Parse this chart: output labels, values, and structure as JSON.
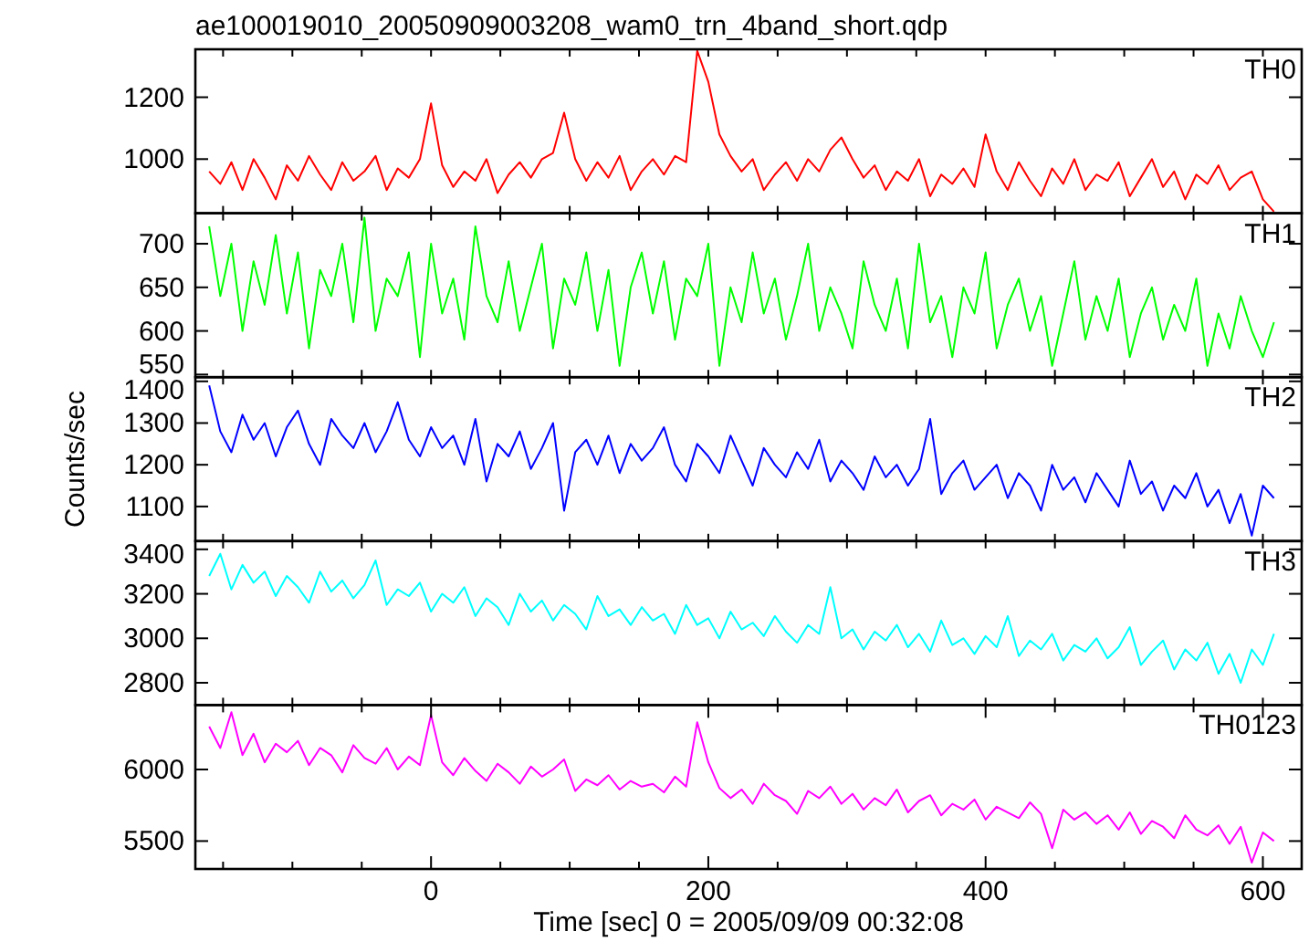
{
  "chart_data": [
    {
      "type": "line",
      "title": "ae100019010_20050909003208_wam0_trn_4band_short.qdp",
      "annotations": [
        "TH0"
      ],
      "tick_labels": "y",
      "x": [
        -160,
        -152,
        -144,
        -136,
        -128,
        -120,
        -112,
        -104,
        -96,
        -88,
        -80,
        -72,
        -64,
        -56,
        -48,
        -40,
        -32,
        -24,
        -16,
        -8,
        0,
        8,
        16,
        24,
        32,
        40,
        48,
        56,
        64,
        72,
        80,
        88,
        96,
        104,
        112,
        120,
        128,
        136,
        144,
        152,
        160,
        168,
        176,
        184,
        192,
        200,
        208,
        216,
        224,
        232,
        240,
        248,
        256,
        264,
        272,
        280,
        288,
        296,
        304,
        312,
        320,
        328,
        336,
        344,
        352,
        360,
        368,
        376,
        384,
        392,
        400,
        408,
        416,
        424,
        432,
        440,
        448,
        456,
        464,
        472,
        480,
        488,
        496,
        504,
        512,
        520,
        528,
        536,
        544,
        552,
        560,
        568,
        576,
        584,
        592,
        600,
        608
      ],
      "xlim": [
        -170,
        628
      ],
      "xticks": [
        {
          "value": -150,
          "label": null
        },
        {
          "value": -100,
          "label": null
        },
        {
          "value": -50,
          "label": null
        },
        {
          "value": 0,
          "label": null
        },
        {
          "value": 50,
          "label": null
        },
        {
          "value": 100,
          "label": null
        },
        {
          "value": 150,
          "label": null
        },
        {
          "value": 200,
          "label": null
        },
        {
          "value": 250,
          "label": null
        },
        {
          "value": 300,
          "label": null
        },
        {
          "value": 350,
          "label": null
        },
        {
          "value": 400,
          "label": null
        },
        {
          "value": 450,
          "label": null
        },
        {
          "value": 500,
          "label": null
        },
        {
          "value": 550,
          "label": null
        },
        {
          "value": 600,
          "label": null
        }
      ],
      "ylim": [
        825,
        1355
      ],
      "yticks": [
        1000,
        1200
      ],
      "series": [
        {
          "color": "#ff0000",
          "values": [
            960,
            920,
            990,
            900,
            1000,
            940,
            870,
            980,
            930,
            1010,
            950,
            900,
            990,
            930,
            960,
            1010,
            900,
            970,
            940,
            1000,
            1180,
            980,
            910,
            960,
            930,
            1000,
            890,
            950,
            990,
            940,
            1000,
            1020,
            1150,
            1000,
            930,
            990,
            940,
            1010,
            900,
            960,
            1000,
            950,
            1010,
            990,
            1350,
            1250,
            1080,
            1010,
            960,
            1000,
            900,
            950,
            990,
            930,
            1000,
            960,
            1030,
            1070,
            1000,
            940,
            980,
            900,
            960,
            930,
            1000,
            880,
            950,
            920,
            970,
            910,
            1080,
            960,
            900,
            990,
            930,
            880,
            970,
            920,
            1000,
            900,
            950,
            930,
            990,
            880,
            940,
            1000,
            910,
            960,
            870,
            950,
            920,
            980,
            900,
            940,
            960,
            870,
            830
          ]
        }
      ]
    },
    {
      "type": "line",
      "annotations": [
        "TH1"
      ],
      "tick_labels": "y",
      "x": [
        -160,
        -152,
        -144,
        -136,
        -128,
        -120,
        -112,
        -104,
        -96,
        -88,
        -80,
        -72,
        -64,
        -56,
        -48,
        -40,
        -32,
        -24,
        -16,
        -8,
        0,
        8,
        16,
        24,
        32,
        40,
        48,
        56,
        64,
        72,
        80,
        88,
        96,
        104,
        112,
        120,
        128,
        136,
        144,
        152,
        160,
        168,
        176,
        184,
        192,
        200,
        208,
        216,
        224,
        232,
        240,
        248,
        256,
        264,
        272,
        280,
        288,
        296,
        304,
        312,
        320,
        328,
        336,
        344,
        352,
        360,
        368,
        376,
        384,
        392,
        400,
        408,
        416,
        424,
        432,
        440,
        448,
        456,
        464,
        472,
        480,
        488,
        496,
        504,
        512,
        520,
        528,
        536,
        544,
        552,
        560,
        568,
        576,
        584,
        592,
        600,
        608
      ],
      "xlim": [
        -170,
        628
      ],
      "xticks": [
        {
          "value": -150,
          "label": null
        },
        {
          "value": -100,
          "label": null
        },
        {
          "value": -50,
          "label": null
        },
        {
          "value": 0,
          "label": null
        },
        {
          "value": 50,
          "label": null
        },
        {
          "value": 100,
          "label": null
        },
        {
          "value": 150,
          "label": null
        },
        {
          "value": 200,
          "label": null
        },
        {
          "value": 250,
          "label": null
        },
        {
          "value": 300,
          "label": null
        },
        {
          "value": 350,
          "label": null
        },
        {
          "value": 400,
          "label": null
        },
        {
          "value": 450,
          "label": null
        },
        {
          "value": 500,
          "label": null
        },
        {
          "value": 550,
          "label": null
        },
        {
          "value": 600,
          "label": null
        }
      ],
      "ylim": [
        547,
        735
      ],
      "yticks": [
        550,
        600,
        650,
        700
      ],
      "series": [
        {
          "color": "#00ff00",
          "values": [
            720,
            640,
            700,
            600,
            680,
            630,
            710,
            620,
            690,
            580,
            670,
            640,
            700,
            610,
            730,
            600,
            660,
            640,
            690,
            570,
            700,
            620,
            660,
            590,
            720,
            640,
            610,
            680,
            600,
            650,
            700,
            580,
            660,
            630,
            690,
            600,
            670,
            560,
            650,
            690,
            620,
            680,
            590,
            660,
            640,
            700,
            560,
            650,
            610,
            690,
            620,
            660,
            590,
            640,
            700,
            600,
            650,
            620,
            580,
            680,
            630,
            600,
            660,
            580,
            700,
            610,
            640,
            570,
            650,
            620,
            690,
            580,
            630,
            660,
            600,
            640,
            560,
            620,
            680,
            590,
            640,
            600,
            660,
            570,
            620,
            650,
            590,
            630,
            600,
            660,
            560,
            620,
            580,
            640,
            600,
            570,
            610
          ]
        }
      ]
    },
    {
      "type": "line",
      "annotations": [
        "TH2"
      ],
      "ylabel": "Counts/sec",
      "tick_labels": "y",
      "x": [
        -160,
        -152,
        -144,
        -136,
        -128,
        -120,
        -112,
        -104,
        -96,
        -88,
        -80,
        -72,
        -64,
        -56,
        -48,
        -40,
        -32,
        -24,
        -16,
        -8,
        0,
        8,
        16,
        24,
        32,
        40,
        48,
        56,
        64,
        72,
        80,
        88,
        96,
        104,
        112,
        120,
        128,
        136,
        144,
        152,
        160,
        168,
        176,
        184,
        192,
        200,
        208,
        216,
        224,
        232,
        240,
        248,
        256,
        264,
        272,
        280,
        288,
        296,
        304,
        312,
        320,
        328,
        336,
        344,
        352,
        360,
        368,
        376,
        384,
        392,
        400,
        408,
        416,
        424,
        432,
        440,
        448,
        456,
        464,
        472,
        480,
        488,
        496,
        504,
        512,
        520,
        528,
        536,
        544,
        552,
        560,
        568,
        576,
        584,
        592,
        600,
        608
      ],
      "xlim": [
        -170,
        628
      ],
      "xticks": [
        {
          "value": -150,
          "label": null
        },
        {
          "value": -100,
          "label": null
        },
        {
          "value": -50,
          "label": null
        },
        {
          "value": 0,
          "label": null
        },
        {
          "value": 50,
          "label": null
        },
        {
          "value": 100,
          "label": null
        },
        {
          "value": 150,
          "label": null
        },
        {
          "value": 200,
          "label": null
        },
        {
          "value": 250,
          "label": null
        },
        {
          "value": 300,
          "label": null
        },
        {
          "value": 350,
          "label": null
        },
        {
          "value": 400,
          "label": null
        },
        {
          "value": 450,
          "label": null
        },
        {
          "value": 500,
          "label": null
        },
        {
          "value": 550,
          "label": null
        },
        {
          "value": 600,
          "label": null
        }
      ],
      "ylim": [
        1017,
        1410
      ],
      "yticks": [
        1100,
        1200,
        1300,
        1400
      ],
      "series": [
        {
          "color": "#0000ff",
          "values": [
            1390,
            1280,
            1230,
            1320,
            1260,
            1300,
            1220,
            1290,
            1330,
            1250,
            1200,
            1310,
            1270,
            1240,
            1300,
            1230,
            1280,
            1350,
            1260,
            1220,
            1290,
            1240,
            1270,
            1200,
            1310,
            1160,
            1250,
            1220,
            1280,
            1190,
            1240,
            1300,
            1090,
            1230,
            1260,
            1200,
            1270,
            1180,
            1250,
            1210,
            1240,
            1290,
            1200,
            1160,
            1250,
            1220,
            1180,
            1270,
            1210,
            1150,
            1240,
            1200,
            1170,
            1230,
            1190,
            1260,
            1160,
            1210,
            1180,
            1140,
            1220,
            1170,
            1200,
            1150,
            1190,
            1310,
            1130,
            1180,
            1210,
            1140,
            1170,
            1200,
            1120,
            1180,
            1150,
            1090,
            1200,
            1140,
            1170,
            1110,
            1180,
            1140,
            1100,
            1210,
            1130,
            1160,
            1090,
            1150,
            1120,
            1180,
            1100,
            1140,
            1060,
            1130,
            1030,
            1150,
            1120
          ]
        }
      ]
    },
    {
      "type": "line",
      "annotations": [
        "TH3"
      ],
      "tick_labels": "y",
      "x": [
        -160,
        -152,
        -144,
        -136,
        -128,
        -120,
        -112,
        -104,
        -96,
        -88,
        -80,
        -72,
        -64,
        -56,
        -48,
        -40,
        -32,
        -24,
        -16,
        -8,
        0,
        8,
        16,
        24,
        32,
        40,
        48,
        56,
        64,
        72,
        80,
        88,
        96,
        104,
        112,
        120,
        128,
        136,
        144,
        152,
        160,
        168,
        176,
        184,
        192,
        200,
        208,
        216,
        224,
        232,
        240,
        248,
        256,
        264,
        272,
        280,
        288,
        296,
        304,
        312,
        320,
        328,
        336,
        344,
        352,
        360,
        368,
        376,
        384,
        392,
        400,
        408,
        416,
        424,
        432,
        440,
        448,
        456,
        464,
        472,
        480,
        488,
        496,
        504,
        512,
        520,
        528,
        536,
        544,
        552,
        560,
        568,
        576,
        584,
        592,
        600,
        608
      ],
      "xlim": [
        -170,
        628
      ],
      "xticks": [
        {
          "value": -150,
          "label": null
        },
        {
          "value": -100,
          "label": null
        },
        {
          "value": -50,
          "label": null
        },
        {
          "value": 0,
          "label": null
        },
        {
          "value": 50,
          "label": null
        },
        {
          "value": 100,
          "label": null
        },
        {
          "value": 150,
          "label": null
        },
        {
          "value": 200,
          "label": null
        },
        {
          "value": 250,
          "label": null
        },
        {
          "value": 300,
          "label": null
        },
        {
          "value": 350,
          "label": null
        },
        {
          "value": 400,
          "label": null
        },
        {
          "value": 450,
          "label": null
        },
        {
          "value": 500,
          "label": null
        },
        {
          "value": 550,
          "label": null
        },
        {
          "value": 600,
          "label": null
        }
      ],
      "ylim": [
        2700,
        3437
      ],
      "yticks": [
        2800,
        3000,
        3200,
        3400
      ],
      "series": [
        {
          "color": "#00ffff",
          "values": [
            3280,
            3380,
            3220,
            3330,
            3250,
            3300,
            3190,
            3280,
            3230,
            3160,
            3300,
            3210,
            3260,
            3180,
            3240,
            3350,
            3150,
            3220,
            3190,
            3250,
            3120,
            3200,
            3160,
            3230,
            3100,
            3180,
            3140,
            3060,
            3200,
            3120,
            3170,
            3080,
            3150,
            3110,
            3040,
            3190,
            3100,
            3130,
            3060,
            3140,
            3080,
            3110,
            3020,
            3150,
            3060,
            3090,
            3000,
            3120,
            3040,
            3070,
            3010,
            3100,
            3030,
            2980,
            3060,
            3020,
            3230,
            3000,
            3040,
            2950,
            3030,
            2990,
            3060,
            2960,
            3020,
            2940,
            3080,
            2970,
            3000,
            2930,
            3010,
            2960,
            3100,
            2920,
            2990,
            2950,
            3020,
            2900,
            2970,
            2940,
            3000,
            2910,
            2960,
            3050,
            2880,
            2940,
            2990,
            2860,
            2950,
            2900,
            2980,
            2840,
            2930,
            2800,
            2950,
            2880,
            3020
          ]
        }
      ]
    },
    {
      "type": "line",
      "annotations": [
        "TH0123"
      ],
      "xlabel": "Time [sec] 0 = 2005/09/09 00:32:08",
      "x": [
        -160,
        -152,
        -144,
        -136,
        -128,
        -120,
        -112,
        -104,
        -96,
        -88,
        -80,
        -72,
        -64,
        -56,
        -48,
        -40,
        -32,
        -24,
        -16,
        -8,
        0,
        8,
        16,
        24,
        32,
        40,
        48,
        56,
        64,
        72,
        80,
        88,
        96,
        104,
        112,
        120,
        128,
        136,
        144,
        152,
        160,
        168,
        176,
        184,
        192,
        200,
        208,
        216,
        224,
        232,
        240,
        248,
        256,
        264,
        272,
        280,
        288,
        296,
        304,
        312,
        320,
        328,
        336,
        344,
        352,
        360,
        368,
        376,
        384,
        392,
        400,
        408,
        416,
        424,
        432,
        440,
        448,
        456,
        464,
        472,
        480,
        488,
        496,
        504,
        512,
        520,
        528,
        536,
        544,
        552,
        560,
        568,
        576,
        584,
        592,
        600,
        608
      ],
      "xlim": [
        -170,
        628
      ],
      "xticks": [
        {
          "value": -150,
          "label": null
        },
        {
          "value": -100,
          "label": null
        },
        {
          "value": -50,
          "label": null
        },
        {
          "value": 0,
          "label": "0"
        },
        {
          "value": 50,
          "label": null
        },
        {
          "value": 100,
          "label": null
        },
        {
          "value": 150,
          "label": null
        },
        {
          "value": 200,
          "label": "200"
        },
        {
          "value": 250,
          "label": null
        },
        {
          "value": 300,
          "label": null
        },
        {
          "value": 350,
          "label": null
        },
        {
          "value": 400,
          "label": "400"
        },
        {
          "value": 450,
          "label": null
        },
        {
          "value": 500,
          "label": null
        },
        {
          "value": 550,
          "label": null
        },
        {
          "value": 600,
          "label": "600"
        }
      ],
      "ylim": [
        5305,
        6450
      ],
      "yticks": [
        5500,
        6000
      ],
      "series": [
        {
          "color": "#ff00ff",
          "values": [
            6300,
            6150,
            6400,
            6100,
            6250,
            6050,
            6180,
            6120,
            6200,
            6030,
            6150,
            6100,
            5980,
            6170,
            6080,
            6040,
            6150,
            6000,
            6090,
            6030,
            6380,
            6050,
            5960,
            6080,
            5990,
            5920,
            6040,
            5980,
            5900,
            6020,
            5950,
            6000,
            6070,
            5850,
            5930,
            5890,
            5960,
            5860,
            5920,
            5880,
            5900,
            5840,
            5950,
            5880,
            6330,
            6050,
            5870,
            5800,
            5860,
            5760,
            5900,
            5820,
            5780,
            5690,
            5850,
            5800,
            5880,
            5760,
            5830,
            5720,
            5800,
            5750,
            5860,
            5700,
            5780,
            5820,
            5680,
            5760,
            5720,
            5790,
            5650,
            5740,
            5700,
            5660,
            5770,
            5690,
            5450,
            5720,
            5650,
            5700,
            5620,
            5680,
            5580,
            5700,
            5550,
            5640,
            5600,
            5520,
            5680,
            5580,
            5540,
            5610,
            5480,
            5600,
            5350,
            5560,
            5500
          ]
        }
      ]
    }
  ]
}
